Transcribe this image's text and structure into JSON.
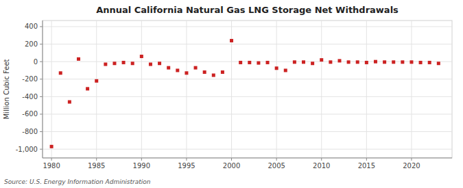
{
  "chart_data": {
    "type": "scatter",
    "title": "Annual California Natural Gas LNG Storage Net Withdrawals",
    "ylabel": "Million Cubic Feet",
    "source": "Source: U.S. Energy Information Administration",
    "color": "#cc2222",
    "marker": "square",
    "grid": true,
    "xlim": [
      1979.0,
      2024.5
    ],
    "ylim": [
      -1100,
      470
    ],
    "xticks": [
      1980,
      1985,
      1990,
      1995,
      2000,
      2005,
      2010,
      2015,
      2020
    ],
    "yticks": [
      {
        "value": -1000,
        "label": "-1,000"
      },
      -800,
      -600,
      -400,
      -200,
      0,
      200,
      400
    ],
    "x": [
      1980,
      1981,
      1982,
      1983,
      1984,
      1985,
      1986,
      1987,
      1988,
      1989,
      1990,
      1991,
      1992,
      1993,
      1994,
      1995,
      1996,
      1997,
      1998,
      1999,
      2000,
      2001,
      2002,
      2003,
      2004,
      2005,
      2006,
      2007,
      2008,
      2009,
      2010,
      2011,
      2012,
      2013,
      2014,
      2015,
      2016,
      2017,
      2018,
      2019,
      2020,
      2021,
      2022,
      2023
    ],
    "values": [
      -970,
      -130,
      -460,
      30,
      -310,
      -220,
      -30,
      -20,
      -10,
      -20,
      60,
      -30,
      -20,
      -70,
      -100,
      -130,
      -70,
      -120,
      -155,
      -120,
      240,
      -10,
      -10,
      -15,
      -10,
      -75,
      -100,
      -5,
      -5,
      -20,
      20,
      -5,
      10,
      -5,
      -5,
      -10,
      0,
      -5,
      -5,
      -5,
      -5,
      -10,
      -10,
      -20
    ]
  }
}
